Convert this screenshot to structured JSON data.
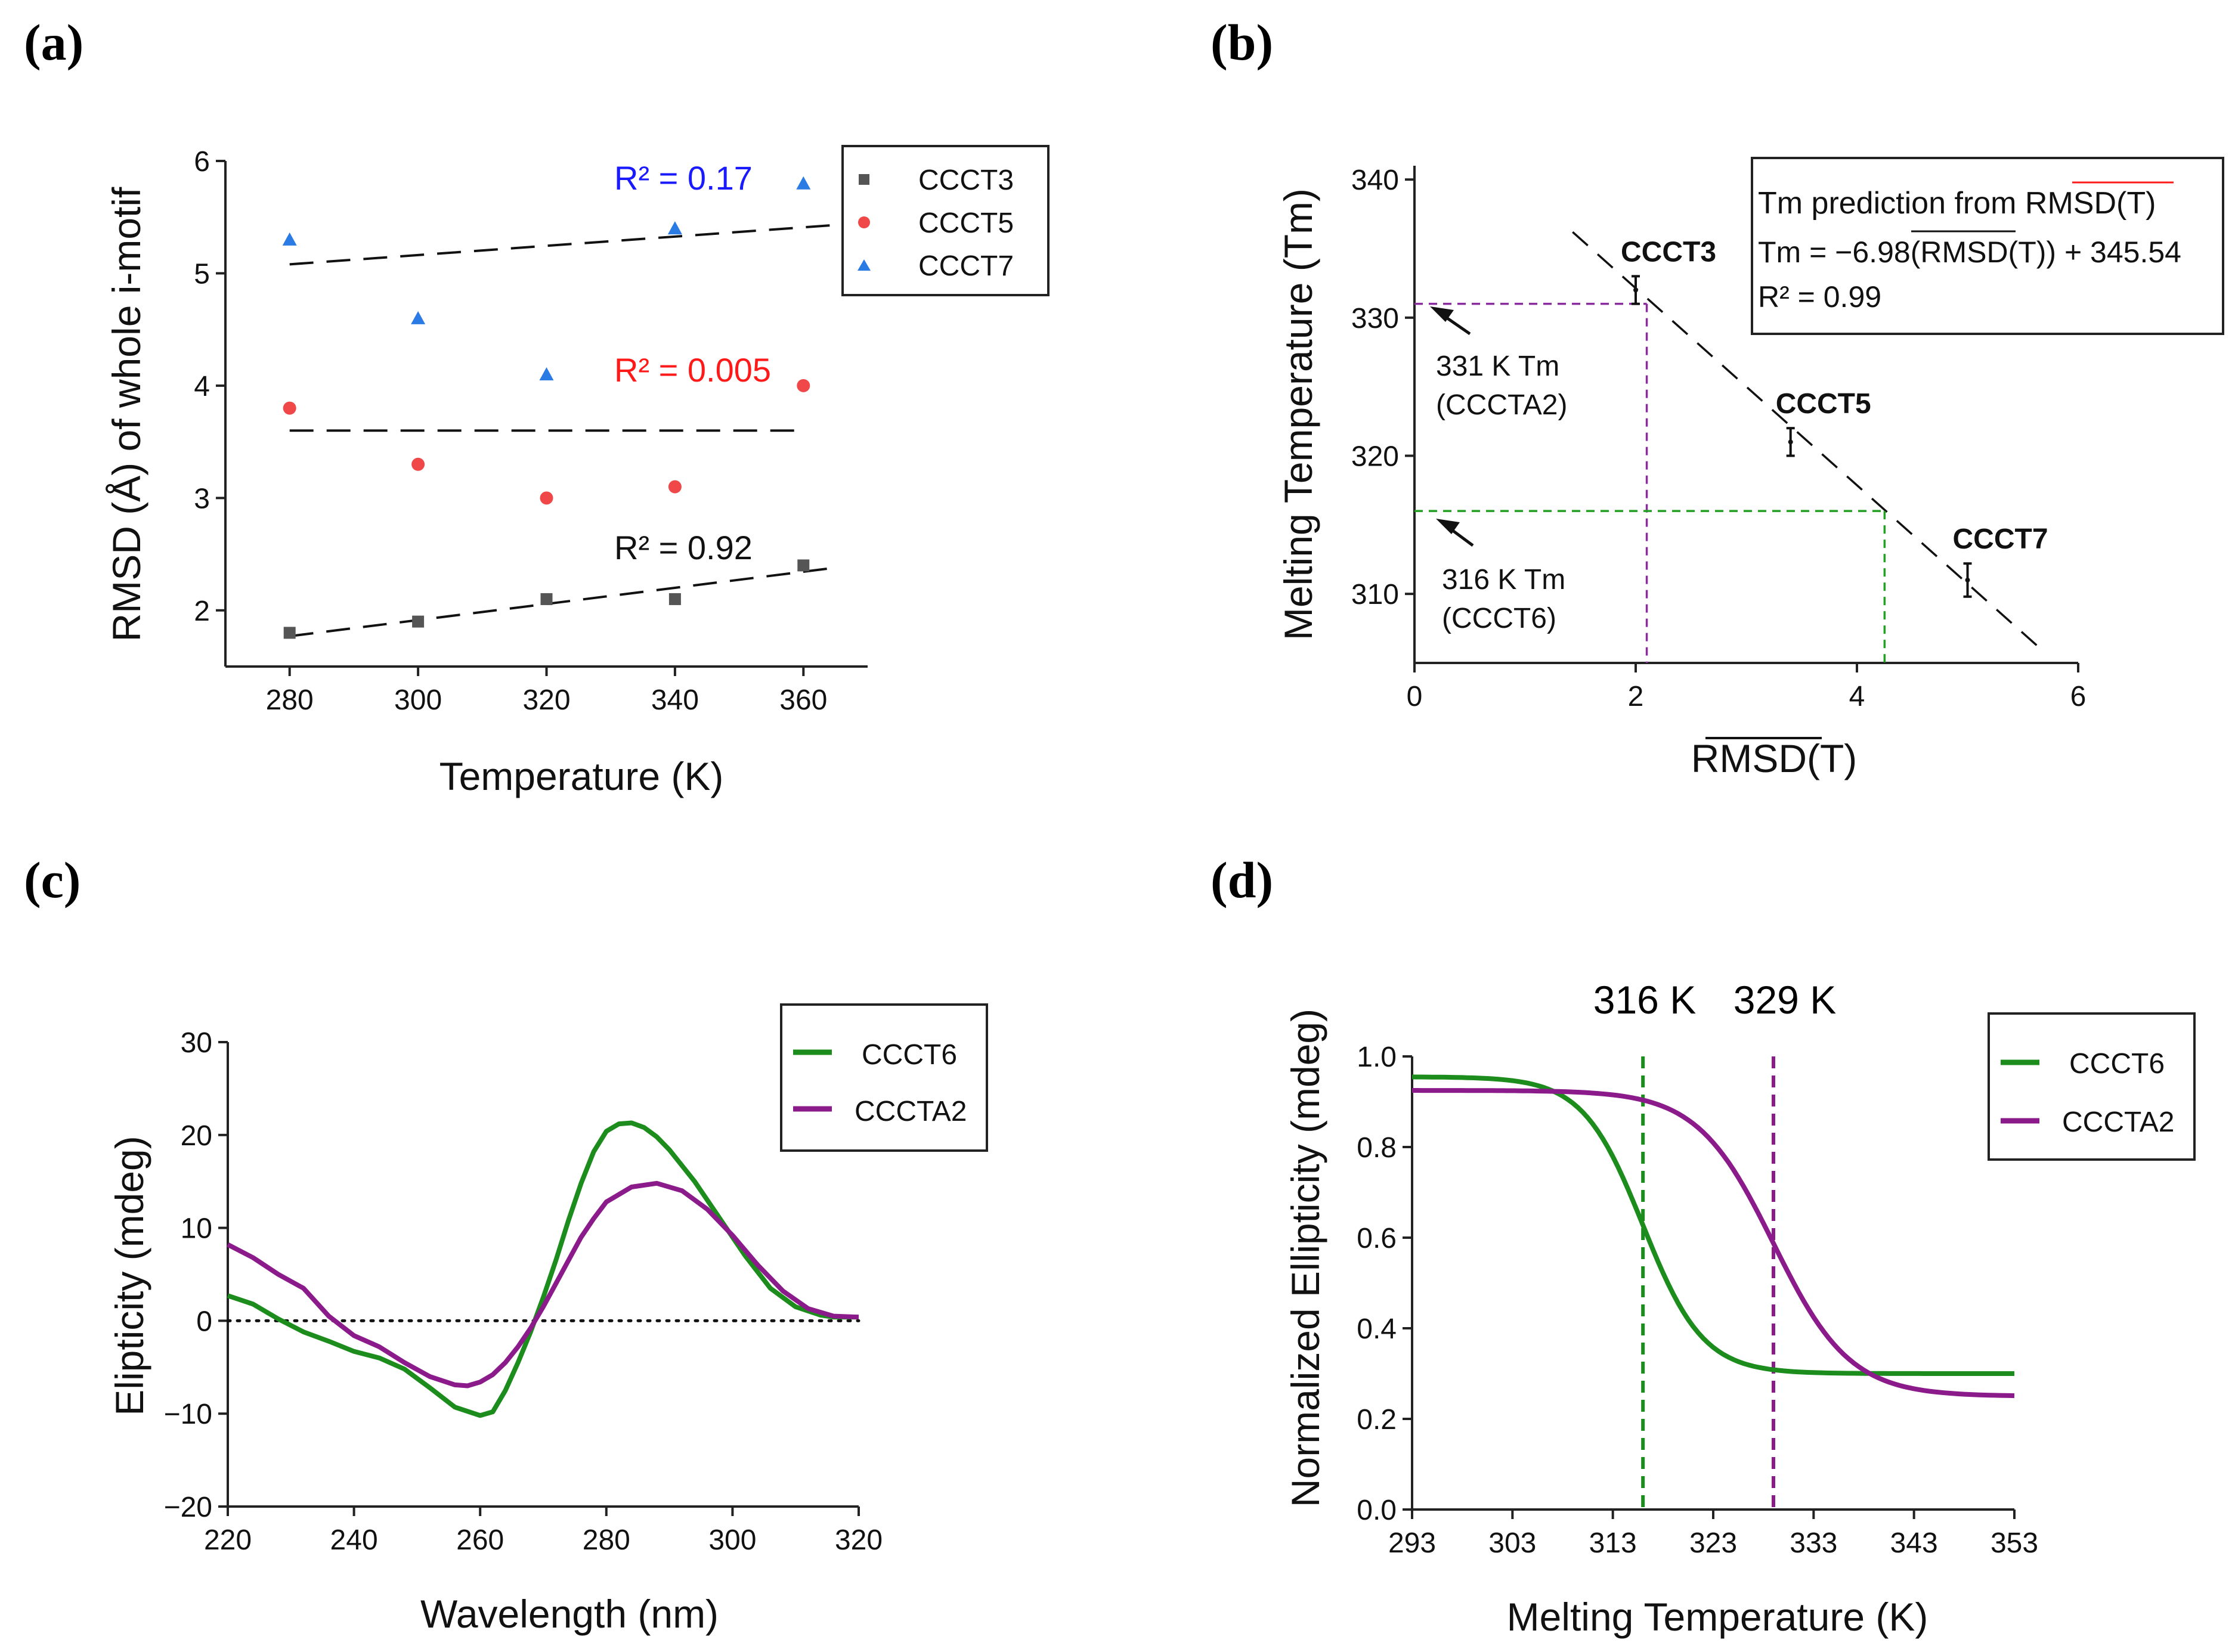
{
  "panel_labels": [
    "(a)",
    "(b)",
    "(c)",
    "(d)"
  ],
  "chart_data": [
    {
      "type": "scatter",
      "panel": "(a)",
      "xlabel": "Temperature (K)",
      "ylabel": "RMSD (Å) of whole i-motif",
      "xlim": [
        270,
        370
      ],
      "ylim": [
        1.5,
        6
      ],
      "xticks": [
        280,
        300,
        320,
        340,
        360
      ],
      "yticks": [
        2,
        3,
        4,
        5,
        6
      ],
      "series": [
        {
          "name": "CCCT3",
          "marker": "square",
          "color": "#555555",
          "x": [
            280,
            300,
            320,
            340,
            360
          ],
          "y": [
            1.8,
            1.9,
            2.1,
            2.1,
            2.4
          ],
          "r2": "R² = 0.92",
          "r2_color": "#111111",
          "trend": [
            [
              280,
              1.77
            ],
            [
              365,
              2.38
            ]
          ]
        },
        {
          "name": "CCCT5",
          "marker": "circle",
          "color": "#f04848",
          "x": [
            280,
            300,
            320,
            340,
            360
          ],
          "y": [
            3.8,
            3.3,
            3.0,
            3.1,
            4.0
          ],
          "r2": "R² = 0.005",
          "r2_color": "#ff1a1a",
          "trend": [
            [
              280,
              3.6
            ],
            [
              360,
              3.6
            ]
          ]
        },
        {
          "name": "CCCT7",
          "marker": "triangle",
          "color": "#2b7be4",
          "x": [
            280,
            300,
            320,
            340,
            360
          ],
          "y": [
            5.3,
            4.6,
            4.1,
            5.4,
            5.8
          ],
          "r2": "R² = 0.17",
          "r2_color": "#1a1aff",
          "trend": [
            [
              280,
              5.08
            ],
            [
              365,
              5.43
            ]
          ]
        }
      ],
      "legend": [
        "CCCT3",
        "CCCT5",
        "CCCT7"
      ]
    },
    {
      "type": "scatter",
      "panel": "(b)",
      "xlabel": "RMSD(T)",
      "ylabel": "Melting Temperature (Tm)",
      "xlim": [
        0,
        6
      ],
      "ylim": [
        305,
        341
      ],
      "xticks": [
        0,
        2,
        4,
        6
      ],
      "yticks": [
        310,
        320,
        330,
        340
      ],
      "points": [
        {
          "label": "CCCT3",
          "x": 2.0,
          "y": 332.0,
          "err": 1.0
        },
        {
          "label": "CCCT5",
          "x": 3.4,
          "y": 321.0,
          "err": 1.0
        },
        {
          "label": "CCCT7",
          "x": 5.0,
          "y": 311.0,
          "err": 1.2
        }
      ],
      "fit_line": [
        [
          1.43,
          336.2
        ],
        [
          5.65,
          306.1
        ]
      ],
      "guides": [
        {
          "color": "#8a2b9e",
          "x": 2.1,
          "y": 331,
          "text1": "331 K Tm",
          "text2": "(CCCTA2)"
        },
        {
          "color": "#22a022",
          "x": 4.25,
          "y": 316,
          "text1": "316 K Tm",
          "text2": "(CCCT6)"
        }
      ],
      "info_box": {
        "title": "Tm prediction from RMSD(T)",
        "equation": "Tm = −6.98(RMSD(T)) + 345.54",
        "r2": "R² = 0.99"
      }
    },
    {
      "type": "line",
      "panel": "(c)",
      "xlabel": "Wavelength (nm)",
      "ylabel": "Elipticity  (mdeg)",
      "xlim": [
        220,
        320
      ],
      "ylim": [
        -20,
        30
      ],
      "xticks": [
        220,
        240,
        260,
        280,
        300,
        320
      ],
      "yticks": [
        -20,
        -10,
        0,
        10,
        20,
        30
      ],
      "ytick_labels": [
        "−20",
        "−10",
        "0",
        "10",
        "20",
        "30"
      ],
      "series": [
        {
          "name": "CCCT6",
          "color": "#1c8c1c",
          "x": [
            220,
            224,
            228,
            232,
            236,
            240,
            244,
            248,
            252,
            256,
            260,
            262,
            264,
            266,
            268,
            270,
            272,
            274,
            276,
            278,
            280,
            282,
            284,
            286,
            288,
            290,
            294,
            298,
            302,
            306,
            310,
            314,
            316,
            320
          ],
          "y": [
            2.7,
            1.8,
            0.2,
            -1.2,
            -2.2,
            -3.3,
            -4.0,
            -5.2,
            -7.2,
            -9.3,
            -10.2,
            -9.8,
            -7.5,
            -4.5,
            -1.2,
            2.5,
            6.5,
            10.8,
            14.8,
            18.2,
            20.4,
            21.2,
            21.3,
            20.8,
            19.8,
            18.4,
            15.0,
            11.0,
            7.0,
            3.5,
            1.5,
            0.6,
            0.4,
            0.4
          ]
        },
        {
          "name": "CCCTA2",
          "color": "#8b1a8b",
          "x": [
            220,
            224,
            228,
            232,
            236,
            240,
            244,
            248,
            252,
            256,
            258,
            260,
            262,
            264,
            266,
            268,
            270,
            272,
            274,
            276,
            278,
            280,
            284,
            288,
            292,
            296,
            300,
            304,
            308,
            312,
            316,
            320
          ],
          "y": [
            8.2,
            6.8,
            5.0,
            3.5,
            0.5,
            -1.6,
            -2.8,
            -4.5,
            -6.0,
            -6.9,
            -7.0,
            -6.6,
            -5.8,
            -4.5,
            -2.8,
            -0.8,
            1.5,
            4.0,
            6.5,
            9.0,
            11.0,
            12.8,
            14.4,
            14.8,
            14.0,
            12.0,
            9.2,
            6.0,
            3.2,
            1.3,
            0.5,
            0.4
          ]
        }
      ],
      "zero_line": 0,
      "legend": [
        "CCCT6",
        "CCCTA2"
      ]
    },
    {
      "type": "line",
      "panel": "(d)",
      "xlabel": "Melting Temperature (K)",
      "ylabel": "Normalized Ellipticity (mdeg)",
      "xlim": [
        293,
        353
      ],
      "ylim": [
        0.0,
        1.0
      ],
      "xticks": [
        293,
        303,
        313,
        323,
        333,
        343,
        353
      ],
      "yticks": [
        0.0,
        0.2,
        0.4,
        0.6,
        0.8,
        1.0
      ],
      "ytick_labels": [
        "0.0",
        "0.2",
        "0.4",
        "0.6",
        "0.8",
        "1.0"
      ],
      "series": [
        {
          "name": "CCCT6",
          "color": "#1c8c1c",
          "sigmoid": {
            "top": 0.955,
            "bottom": 0.3,
            "tm": 316,
            "slope": 3.0
          }
        },
        {
          "name": "CCCTA2",
          "color": "#8b1a8b",
          "sigmoid": {
            "top": 0.925,
            "bottom": 0.25,
            "tm": 329,
            "slope": 3.8
          }
        }
      ],
      "vlines": [
        {
          "x": 316,
          "color": "#1c8c1c",
          "label": "316 K"
        },
        {
          "x": 329,
          "color": "#8b1a8b",
          "label": "329 K"
        }
      ],
      "legend": [
        "CCCT6",
        "CCCTA2"
      ]
    }
  ]
}
